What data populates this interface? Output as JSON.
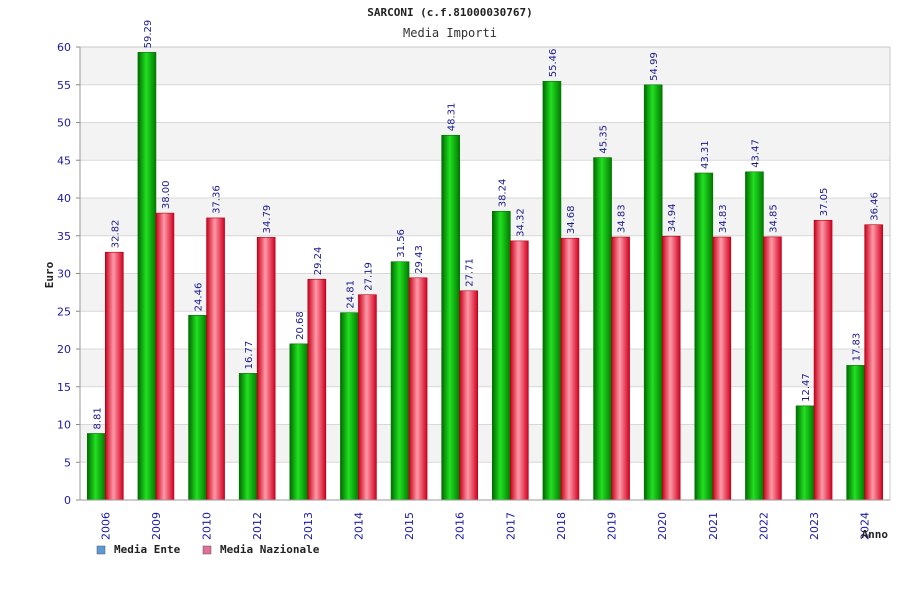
{
  "chart_data": {
    "type": "bar",
    "title": "SARCONI (c.f.81000030767)",
    "subtitle": "Media Importi",
    "xlabel": "Anno",
    "ylabel": "Euro",
    "ylim": [
      0,
      60
    ],
    "yticks": [
      0,
      5,
      10,
      15,
      20,
      25,
      30,
      35,
      40,
      45,
      50,
      55,
      60
    ],
    "grid": true,
    "legend_position": "bottom-left",
    "categories": [
      "2006",
      "2009",
      "2010",
      "2012",
      "2013",
      "2014",
      "2015",
      "2016",
      "2017",
      "2018",
      "2019",
      "2020",
      "2021",
      "2022",
      "2023",
      "2024"
    ],
    "series": [
      {
        "name": "Media Ente",
        "values": [
          8.81,
          59.29,
          24.46,
          16.77,
          20.68,
          24.81,
          31.56,
          48.31,
          38.24,
          55.46,
          45.35,
          54.99,
          43.31,
          43.47,
          12.47,
          17.83
        ],
        "labels": [
          "8.81",
          "59.29",
          "24.46",
          "16.77",
          "20.68",
          "24.81",
          "31.56",
          "48.31",
          "38.24",
          "55.46",
          "45.35",
          "54.99",
          "43.31",
          "43.47",
          "12.47",
          "17.83"
        ],
        "color": "#00b000",
        "legend_color": "#5b9bd5"
      },
      {
        "name": "Media Nazionale",
        "values": [
          32.82,
          38.0,
          37.36,
          34.79,
          29.24,
          27.19,
          29.43,
          27.71,
          34.32,
          34.68,
          34.83,
          34.94,
          34.83,
          34.85,
          37.05,
          36.46
        ],
        "labels": [
          "32.82",
          "38.00",
          "37.36",
          "34.79",
          "29.24",
          "27.19",
          "29.43",
          "27.71",
          "34.32",
          "34.68",
          "34.83",
          "34.94",
          "34.83",
          "34.85",
          "37.05",
          "36.46"
        ],
        "color": "#e02030",
        "legend_color": "#e0709a"
      }
    ]
  }
}
